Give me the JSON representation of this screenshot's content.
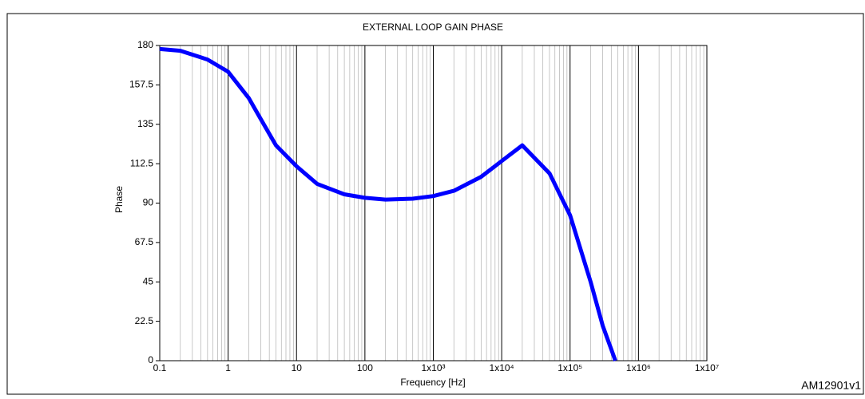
{
  "chart_data": {
    "type": "line",
    "title": "EXTERNAL LOOP GAIN PHASE",
    "x_label": "Frequency [Hz]",
    "y_label": "Phase",
    "footnote": "AM12901v1",
    "log_x": true,
    "grid": "x",
    "xlim": [
      0.1,
      10000000
    ],
    "ylim": [
      0,
      180
    ],
    "xticks": [
      0.1,
      1,
      10,
      100,
      {
        "value": 1000,
        "label": "1x10³"
      },
      {
        "value": 10000,
        "label": "1x10⁴"
      },
      {
        "value": 100000,
        "label": "1x10⁵"
      },
      {
        "value": 1000000,
        "label": "1x10⁶"
      },
      {
        "value": 10000000,
        "label": "1x10⁷"
      }
    ],
    "yticks": [
      0,
      22.5,
      45,
      67.5,
      90,
      112.5,
      135,
      157.5,
      180
    ],
    "x": [
      0.1,
      0.2,
      0.5,
      1,
      2,
      3,
      5,
      10,
      20,
      50,
      100,
      200,
      500,
      1000,
      2000,
      5000,
      10000,
      20000,
      50000,
      100000,
      200000,
      300000,
      460000
    ],
    "series": [
      {
        "name": "Phase",
        "color": "#0000ff",
        "values": [
          178,
          177,
          172,
          165,
          150,
          138,
          123,
          111,
          101,
          95,
          93,
          92,
          92.5,
          94,
          97,
          105,
          114,
          123,
          107,
          83,
          45,
          20,
          0
        ]
      }
    ]
  }
}
